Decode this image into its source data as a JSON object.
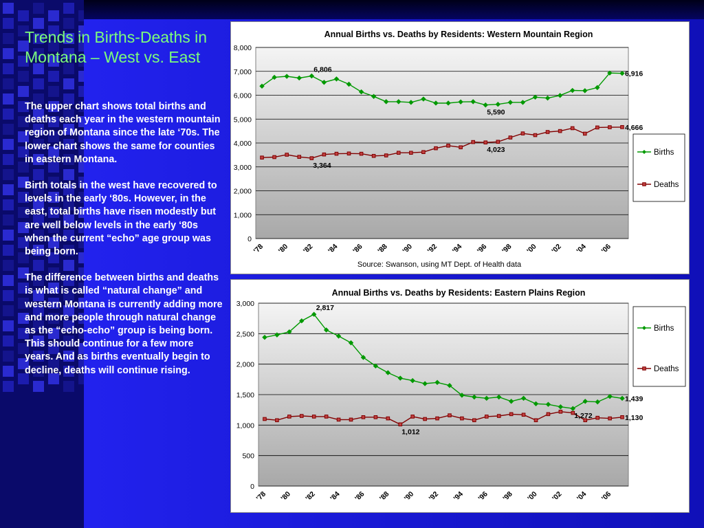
{
  "slide": {
    "title": "Trends in Births-Deaths in Montana – West vs. East",
    "paragraphs": [
      "The upper chart shows total births and deaths each year in the western mountain region of Montana since the late ‘70s.  The lower chart shows the same for counties in eastern Montana.",
      "Birth totals in the west have recovered to levels in the early ‘80s.  However, in the east, total births have risen modestly but are well below levels in the early ‘80s when the current “echo” age group was being born.",
      "The difference between births and deaths is what is called “natural change” and western Montana is currently adding more and more people through natural change as the “echo-echo” group is being born.  This should continue for a few more years.  And as births eventually begin to decline, deaths will continue rising."
    ]
  },
  "colors": {
    "births": "#009900",
    "deaths": "#800000",
    "title_text": "#7cfc7c"
  },
  "chart_data": [
    {
      "type": "line",
      "title": "Annual Births vs. Deaths by Residents: Western Mountain Region",
      "source": "Source: Swanson, using MT Dept. of Health data",
      "x": [
        1978,
        1979,
        1980,
        1981,
        1982,
        1983,
        1984,
        1985,
        1986,
        1987,
        1988,
        1989,
        1990,
        1991,
        1992,
        1993,
        1994,
        1995,
        1996,
        1997,
        1998,
        1999,
        2000,
        2001,
        2002,
        2003,
        2004,
        2005,
        2006,
        2007
      ],
      "x_tick_labels": [
        "'78",
        "'80",
        "'82",
        "'84",
        "'86",
        "'88",
        "'90",
        "'92",
        "'94",
        "'96",
        "'98",
        "'00",
        "'02",
        "'04",
        "'06"
      ],
      "ylim": [
        0,
        8000
      ],
      "y_ticks": [
        0,
        1000,
        2000,
        3000,
        4000,
        5000,
        6000,
        7000,
        8000
      ],
      "y_tick_labels": [
        "0",
        "1,000",
        "2,000",
        "3,000",
        "4,000",
        "5,000",
        "6,000",
        "7,000",
        "8,000"
      ],
      "grid": true,
      "legend_placement": "right",
      "series": [
        {
          "name": "Births",
          "values": [
            6380,
            6750,
            6790,
            6720,
            6806,
            6540,
            6680,
            6460,
            6140,
            5950,
            5730,
            5730,
            5700,
            5840,
            5670,
            5670,
            5720,
            5730,
            5590,
            5620,
            5700,
            5700,
            5920,
            5880,
            5990,
            6200,
            6190,
            6320,
            6930,
            6916
          ]
        },
        {
          "name": "Deaths",
          "values": [
            3390,
            3410,
            3510,
            3420,
            3364,
            3520,
            3550,
            3560,
            3550,
            3460,
            3480,
            3590,
            3590,
            3620,
            3780,
            3890,
            3820,
            4040,
            4023,
            4050,
            4230,
            4400,
            4330,
            4460,
            4500,
            4620,
            4390,
            4650,
            4660,
            4666
          ]
        }
      ],
      "data_labels": [
        {
          "series": "Births",
          "x": 1982,
          "text": "6,806"
        },
        {
          "series": "Births",
          "x": 1996,
          "text": "5,590"
        },
        {
          "series": "Births",
          "x": 2007,
          "text": "6,916"
        },
        {
          "series": "Deaths",
          "x": 1982,
          "text": "3,364"
        },
        {
          "series": "Deaths",
          "x": 1996,
          "text": "4,023"
        },
        {
          "series": "Deaths",
          "x": 2007,
          "text": "4,666"
        }
      ]
    },
    {
      "type": "line",
      "title": "Annual Births vs. Deaths by Residents: Eastern Plains Region",
      "x": [
        1978,
        1979,
        1980,
        1981,
        1982,
        1983,
        1984,
        1985,
        1986,
        1987,
        1988,
        1989,
        1990,
        1991,
        1992,
        1993,
        1994,
        1995,
        1996,
        1997,
        1998,
        1999,
        2000,
        2001,
        2002,
        2003,
        2004,
        2005,
        2006,
        2007
      ],
      "x_tick_labels": [
        "'78",
        "'80",
        "'82",
        "'84",
        "'86",
        "'88",
        "'90",
        "'92",
        "'94",
        "'96",
        "'98",
        "'00",
        "'02",
        "'04",
        "'06"
      ],
      "ylim": [
        0,
        3000
      ],
      "y_ticks": [
        0,
        500,
        1000,
        1500,
        2000,
        2500,
        3000
      ],
      "y_tick_labels": [
        "0",
        "500",
        "1,000",
        "1,500",
        "2,000",
        "2,500",
        "3,000"
      ],
      "grid": true,
      "legend_placement": "right",
      "series": [
        {
          "name": "Births",
          "values": [
            2440,
            2480,
            2530,
            2710,
            2817,
            2560,
            2460,
            2350,
            2110,
            1970,
            1860,
            1770,
            1730,
            1680,
            1700,
            1650,
            1490,
            1460,
            1440,
            1460,
            1390,
            1440,
            1350,
            1340,
            1300,
            1272,
            1390,
            1380,
            1470,
            1439
          ]
        },
        {
          "name": "Deaths",
          "values": [
            1100,
            1080,
            1140,
            1150,
            1140,
            1140,
            1090,
            1090,
            1130,
            1130,
            1110,
            1012,
            1140,
            1100,
            1110,
            1160,
            1110,
            1080,
            1140,
            1150,
            1180,
            1170,
            1080,
            1180,
            1220,
            1200,
            1080,
            1120,
            1110,
            1130
          ]
        }
      ],
      "data_labels": [
        {
          "series": "Births",
          "x": 1982,
          "text": "2,817"
        },
        {
          "series": "Births",
          "x": 2003,
          "text": "1,272"
        },
        {
          "series": "Births",
          "x": 2007,
          "text": "1,439"
        },
        {
          "series": "Deaths",
          "x": 1989,
          "text": "1,012"
        },
        {
          "series": "Deaths",
          "x": 2007,
          "text": "1,130"
        }
      ]
    }
  ]
}
